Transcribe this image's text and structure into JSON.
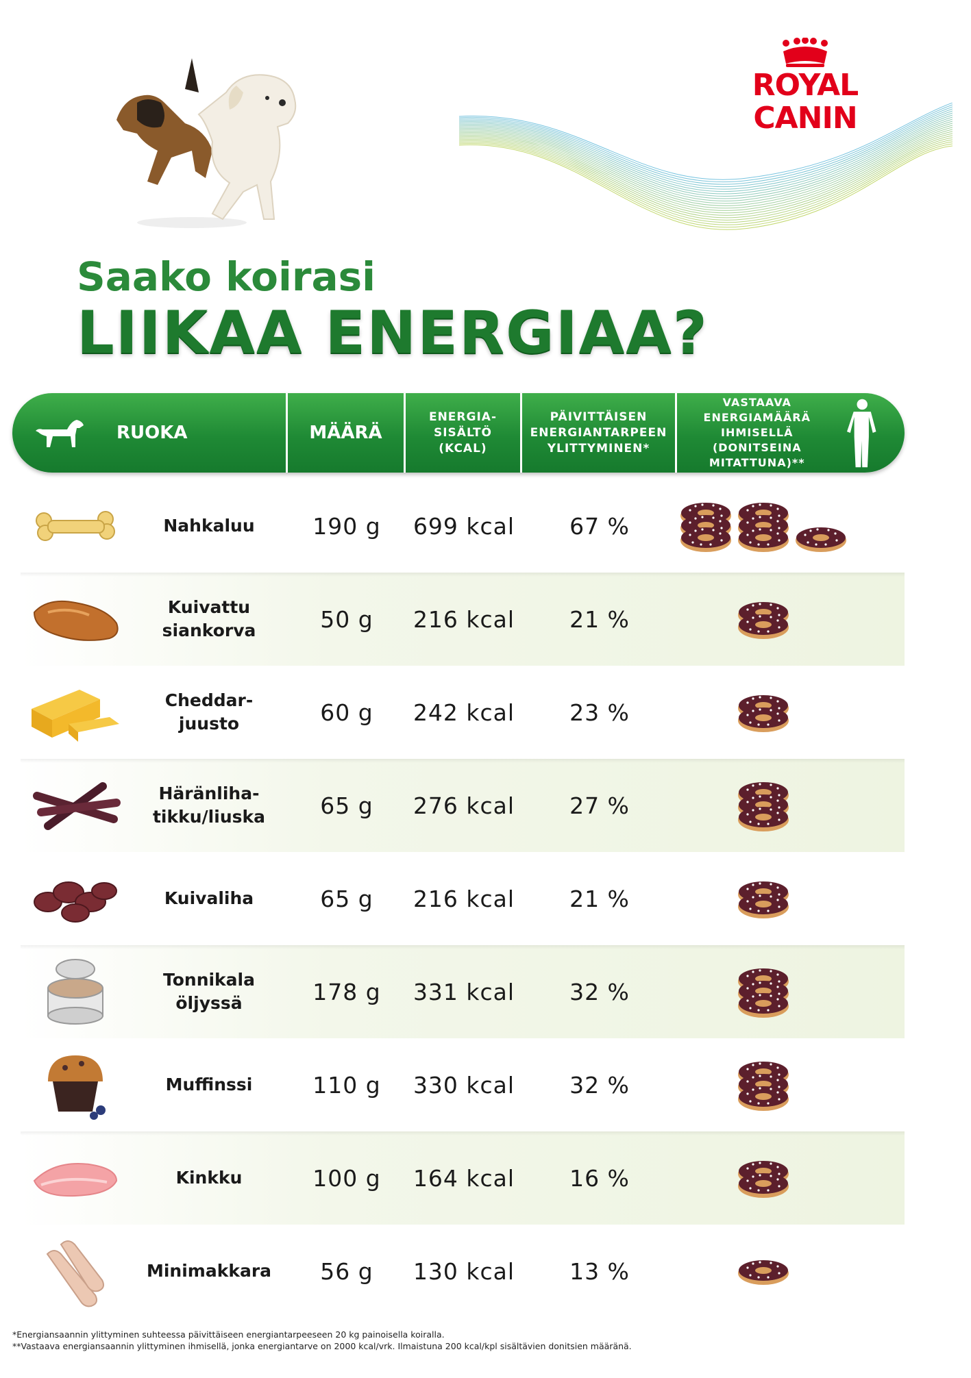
{
  "brand": {
    "name": "ROYAL CANIN",
    "color": "#e2001a"
  },
  "title": {
    "line1": "Saako koirasi",
    "line2": "LIIKAA ENERGIAA?"
  },
  "colors": {
    "green_dark": "#1e7a2e",
    "green_light": "#3fae4a",
    "row_tint": "#eef4e1"
  },
  "header": {
    "food": "RUOKA",
    "amount": "MÄÄRÄ",
    "energy": [
      "ENERGIA-",
      "SISÄLTÖ",
      "(KCAL)"
    ],
    "excess": [
      "PÄIVITTÄISEN",
      "ENERGIANTARPEEN",
      "YLITTYMINEN*"
    ],
    "human": [
      "VASTAAVA",
      "ENERGIAMÄÄRÄ",
      "IHMISELLÄ (DONITSEINA",
      "MITATTUNA)**"
    ],
    "icons": {
      "dog": "dog-icon",
      "human": "human-icon"
    }
  },
  "rows": [
    {
      "name": [
        "Nahkaluu"
      ],
      "amount": "190 g",
      "kcal": "699 kcal",
      "pct": "67 %",
      "icon": "rawhide-bone-icon",
      "donut_stacks": [
        3,
        3,
        1
      ]
    },
    {
      "name": [
        "Kuivattu",
        "siankorva"
      ],
      "amount": "50 g",
      "kcal": "216 kcal",
      "pct": "21 %",
      "icon": "pig-ear-icon",
      "donut_stacks": [
        2
      ]
    },
    {
      "name": [
        "Cheddar-",
        "juusto"
      ],
      "amount": "60 g",
      "kcal": "242 kcal",
      "pct": "23 %",
      "icon": "cheese-icon",
      "donut_stacks": [
        2
      ]
    },
    {
      "name": [
        "Häränliha-",
        "tikku/liuska"
      ],
      "amount": "65 g",
      "kcal": "276 kcal",
      "pct": "27 %",
      "icon": "beef-stick-icon",
      "donut_stacks": [
        3
      ]
    },
    {
      "name": [
        "Kuivaliha"
      ],
      "amount": "65 g",
      "kcal": "216 kcal",
      "pct": "21 %",
      "icon": "jerky-icon",
      "donut_stacks": [
        2
      ]
    },
    {
      "name": [
        "Tonnikala",
        "öljyssä"
      ],
      "amount": "178 g",
      "kcal": "331 kcal",
      "pct": "32 %",
      "icon": "tuna-can-icon",
      "donut_stacks": [
        3
      ]
    },
    {
      "name": [
        "Muffinssi"
      ],
      "amount": "110 g",
      "kcal": "330 kcal",
      "pct": "32 %",
      "icon": "muffin-icon",
      "donut_stacks": [
        3
      ]
    },
    {
      "name": [
        "Kinkku"
      ],
      "amount": "100 g",
      "kcal": "164 kcal",
      "pct": "16 %",
      "icon": "ham-icon",
      "donut_stacks": [
        2
      ]
    },
    {
      "name": [
        "Minimakkara"
      ],
      "amount": "56 g",
      "kcal": "130 kcal",
      "pct": "13 %",
      "icon": "sausage-icon",
      "donut_stacks": [
        1
      ]
    }
  ],
  "footnotes": [
    "*Energiansaannin ylittyminen suhteessa päivittäiseen energiantarpeeseen 20 kg painoisella koiralla.",
    "**Vastaava energiansaannin ylittyminen ihmisellä, jonka energiantarve on 2000 kcal/vrk. Ilmaistuna 200 kcal/kpl sisältävien donitsien määränä."
  ]
}
